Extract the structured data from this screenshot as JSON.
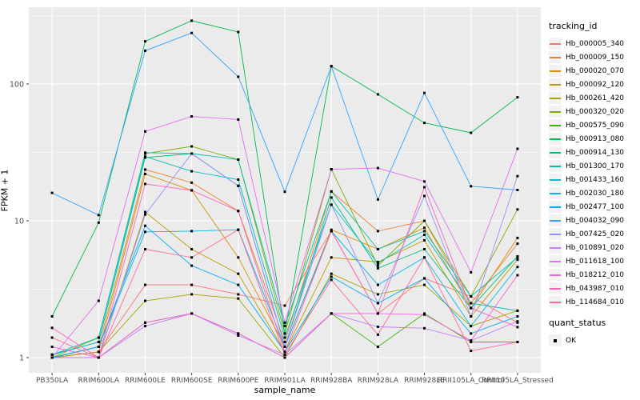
{
  "axes": {
    "x_title": "sample_name",
    "y_title": "FPKM + 1",
    "y_ticks": [
      {
        "label": "1",
        "value": 1
      },
      {
        "label": "10",
        "value": 10
      },
      {
        "label": "100",
        "value": 100
      }
    ]
  },
  "legend": {
    "tracking_title": "tracking_id",
    "quant_title": "quant_status",
    "quant_item": "OK"
  },
  "colors": {
    "panel_background": "#EBEBEB",
    "gridline": "#FFFFFF",
    "point": "#000000",
    "tick_text": "#4D4D4D",
    "tick_mark": "#333333"
  },
  "chart_data": {
    "type": "line",
    "title": "",
    "xlabel": "sample_name",
    "ylabel": "FPKM + 1",
    "y_scale": "log10",
    "ylim": [
      1,
      363
    ],
    "grid": true,
    "legend_position": "right",
    "point_marker": "black-square",
    "categories": [
      "PB350LA",
      "RRIM600LA",
      "RRIM600LE",
      "RRIM600SE",
      "RRIM600PE",
      "RRIM901LA",
      "RRIM928BA",
      "RRIM928LA",
      "RRIM928LE",
      "RRII105LA_Control",
      "RRII105LA_Stressed"
    ],
    "series": [
      {
        "name": "Hb_000005_340",
        "color": "#F8766D",
        "values": [
          1.0,
          1.1,
          3.4,
          3.4,
          2.9,
          2.4,
          8.4,
          2.1,
          3.8,
          2.8,
          1.8
        ]
      },
      {
        "name": "Hb_000009_150",
        "color": "#EA8331",
        "values": [
          1.0,
          1.2,
          23.7,
          19.0,
          11.8,
          1.3,
          16.4,
          8.4,
          10.0,
          2.5,
          6.8
        ]
      },
      {
        "name": "Hb_000020_070",
        "color": "#D89000",
        "values": [
          1.0,
          1.1,
          22.0,
          16.7,
          5.4,
          1.2,
          8.6,
          6.2,
          8.9,
          2.3,
          7.5
        ]
      },
      {
        "name": "Hb_000092_120",
        "color": "#C09B00",
        "values": [
          1.0,
          1.0,
          11.6,
          6.2,
          4.1,
          1.1,
          5.4,
          5.0,
          7.2,
          2.0,
          5.2
        ]
      },
      {
        "name": "Hb_000261_420",
        "color": "#A3A500",
        "values": [
          1.0,
          1.1,
          2.6,
          2.9,
          2.7,
          1.0,
          4.1,
          2.9,
          3.4,
          1.7,
          2.2
        ]
      },
      {
        "name": "Hb_000320_020",
        "color": "#7CAE00",
        "values": [
          1.0,
          1.4,
          31.0,
          35.0,
          28.0,
          1.5,
          23.8,
          4.7,
          10.0,
          2.8,
          12.1
        ]
      },
      {
        "name": "Hb_000575_090",
        "color": "#39B600",
        "values": [
          1.0,
          1.0,
          1.8,
          2.1,
          1.5,
          1.0,
          2.1,
          1.2,
          2.1,
          1.3,
          1.3
        ]
      },
      {
        "name": "Hb_000913_080",
        "color": "#00BB4E",
        "values": [
          2.0,
          9.7,
          205,
          290,
          240,
          1.5,
          135,
          84,
          52,
          44,
          80
        ]
      },
      {
        "name": "Hb_000914_130",
        "color": "#00C081",
        "values": [
          1.05,
          1.3,
          29.0,
          31.0,
          18.0,
          1.2,
          14.8,
          4.5,
          6.2,
          2.3,
          5.5
        ]
      },
      {
        "name": "Hb_001300_170",
        "color": "#00C0AF",
        "values": [
          1.05,
          1.4,
          31.5,
          31.0,
          28.0,
          1.7,
          16.4,
          6.2,
          8.4,
          2.8,
          5.4
        ]
      },
      {
        "name": "Hb_001433_160",
        "color": "#00BFC4",
        "values": [
          1.05,
          1.3,
          29.5,
          23.0,
          20.0,
          1.4,
          13.1,
          4.9,
          7.9,
          2.5,
          2.2
        ]
      },
      {
        "name": "Hb_002030_180",
        "color": "#00B8E7",
        "values": [
          1.0,
          1.2,
          8.3,
          8.4,
          8.6,
          1.2,
          8.4,
          3.4,
          5.4,
          1.7,
          4.6
        ]
      },
      {
        "name": "Hb_002477_100",
        "color": "#00ACFC",
        "values": [
          1.0,
          1.2,
          9.2,
          4.7,
          3.4,
          1.1,
          3.9,
          2.5,
          3.8,
          1.5,
          2.0
        ]
      },
      {
        "name": "Hb_004032_090",
        "color": "#35A2FF",
        "values": [
          16.0,
          11.0,
          175,
          236,
          113,
          16.3,
          135,
          14.3,
          86,
          17.9,
          16.8
        ]
      },
      {
        "name": "Hb_007425_020",
        "color": "#9590FF",
        "values": [
          1.0,
          1.0,
          11.1,
          31.0,
          18.0,
          1.2,
          13.1,
          2.5,
          15.2,
          2.0,
          21.2
        ]
      },
      {
        "name": "Hb_010891_020",
        "color": "#C77CFF",
        "values": [
          1.0,
          1.0,
          1.7,
          2.1,
          1.45,
          1.05,
          2.1,
          1.68,
          1.64,
          1.33,
          1.84
        ]
      },
      {
        "name": "Hb_011618_100",
        "color": "#E76BF3",
        "values": [
          1.0,
          2.6,
          45.0,
          58.0,
          55.0,
          1.8,
          23.8,
          24.3,
          19.4,
          4.2,
          33.6
        ]
      },
      {
        "name": "Hb_018212_010",
        "color": "#FA62DB",
        "values": [
          1.2,
          1.0,
          1.8,
          2.1,
          1.5,
          1.0,
          2.1,
          2.1,
          2.06,
          1.33,
          4.0
        ]
      },
      {
        "name": "Hb_043987_010",
        "color": "#FF62BC",
        "values": [
          1.65,
          1.0,
          18.6,
          16.7,
          11.8,
          1.1,
          8.4,
          2.1,
          17.6,
          2.3,
          1.67
        ]
      },
      {
        "name": "Hb_114684_010",
        "color": "#FF6A98",
        "values": [
          1.4,
          1.0,
          6.2,
          5.4,
          8.6,
          1.05,
          3.7,
          1.47,
          5.4,
          1.12,
          1.3
        ]
      }
    ]
  }
}
